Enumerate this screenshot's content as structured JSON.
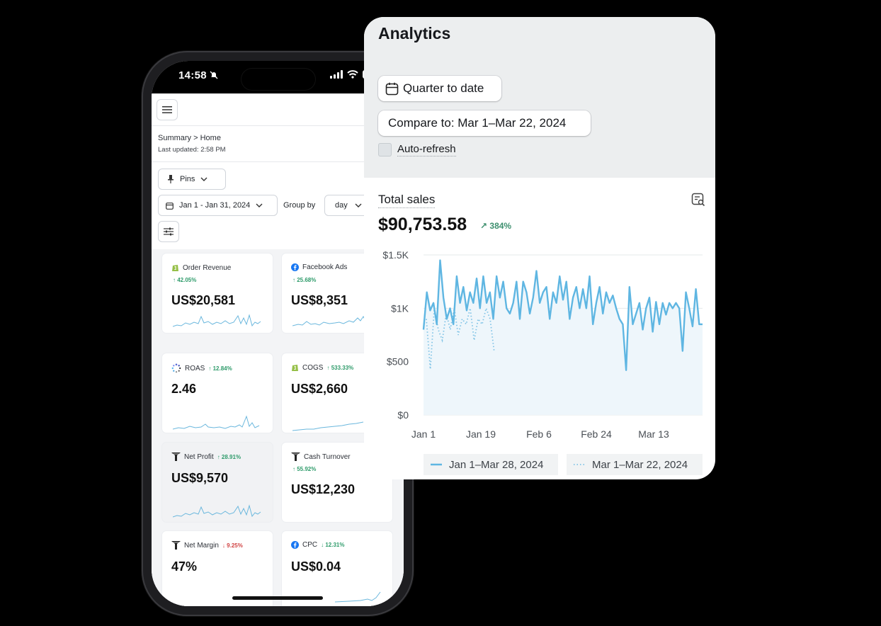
{
  "phone": {
    "status_time": "14:58",
    "breadcrumb": "Summary > Home",
    "last_updated": "Last updated: 2:58 PM",
    "pins_label": "Pins",
    "date_range": "Jan 1 - Jan 31, 2024",
    "group_by_label": "Group by",
    "group_by_value": "day",
    "cards": [
      {
        "title": "Order Revenue",
        "delta": "42.05%",
        "direction": "up",
        "value": "US$20,581",
        "icon": "shopify-icon"
      },
      {
        "title": "Facebook Ads",
        "delta": "25.68%",
        "direction": "up",
        "value": "US$8,351",
        "icon": "facebook-icon"
      },
      {
        "title": "ROAS",
        "delta": "12.84%",
        "direction": "up",
        "value": "2.46",
        "icon": "loading-dots-icon"
      },
      {
        "title": "COGS",
        "delta": "533.33%",
        "direction": "up",
        "value": "US$2,660",
        "icon": "shopify-icon"
      },
      {
        "title": "Net Profit",
        "delta": "28.91%",
        "direction": "up",
        "value": "US$9,570",
        "icon": "brand-logo-icon"
      },
      {
        "title": "Cash Turnover",
        "delta": "55.92%",
        "direction": "up",
        "value": "US$12,230",
        "icon": "brand-logo-icon"
      },
      {
        "title": "Net Margin",
        "delta": "9.25%",
        "direction": "down",
        "value": "47%",
        "icon": "brand-logo-icon"
      },
      {
        "title": "CPC",
        "delta": "12.31%",
        "direction": "down",
        "value": "US$0.04",
        "icon": "facebook-icon"
      }
    ]
  },
  "analytics": {
    "title": "Analytics",
    "period_button": "Quarter to date",
    "compare_button": "Compare to: Mar 1–Mar 22, 2024",
    "auto_refresh": "Auto-refresh",
    "total_sales_label": "Total sales",
    "total_sales_value": "$90,753.58",
    "total_sales_delta": "384%"
  },
  "chart_data": {
    "type": "line",
    "ylim": [
      0,
      1500
    ],
    "yticks": [
      "$1.5K",
      "$1K",
      "$500",
      "$0"
    ],
    "xticks": [
      "Jan 1",
      "Jan 19",
      "Feb 6",
      "Feb 24",
      "Mar 13"
    ],
    "grid": true,
    "series": [
      {
        "name": "Jan 1–Mar 28, 2024",
        "style": "solid",
        "color": "#5fb6e2",
        "values": [
          800,
          1150,
          980,
          1050,
          850,
          1450,
          1100,
          900,
          1000,
          850,
          1300,
          1050,
          1200,
          980,
          1150,
          1050,
          1280,
          1000,
          1300,
          1050,
          1150,
          900,
          1300,
          1100,
          1250,
          1000,
          950,
          1050,
          1250,
          900,
          1250,
          1150,
          950,
          1100,
          1350,
          1050,
          1150,
          1200,
          900,
          1150,
          1050,
          1300,
          1080,
          1250,
          900,
          1100,
          1200,
          1000,
          1180,
          1000,
          1300,
          850,
          1050,
          1200,
          950,
          1150,
          1050,
          1120,
          1000,
          900,
          850,
          420,
          1200,
          850,
          950,
          1050,
          800,
          1000,
          1100,
          780,
          1060,
          850,
          1050,
          940,
          1050,
          1000,
          1050,
          1000,
          600,
          1150,
          1000,
          830,
          1180,
          850,
          850
        ]
      },
      {
        "name": "Mar 1–Mar 22, 2024",
        "style": "dotted",
        "color": "#7fc3e6",
        "values": [
          900,
          430,
          1000,
          800,
          700,
          950,
          800,
          1000,
          750,
          900,
          850,
          1000,
          700,
          900,
          850,
          1000,
          900,
          600
        ]
      }
    ],
    "legend_position": "bottom"
  }
}
